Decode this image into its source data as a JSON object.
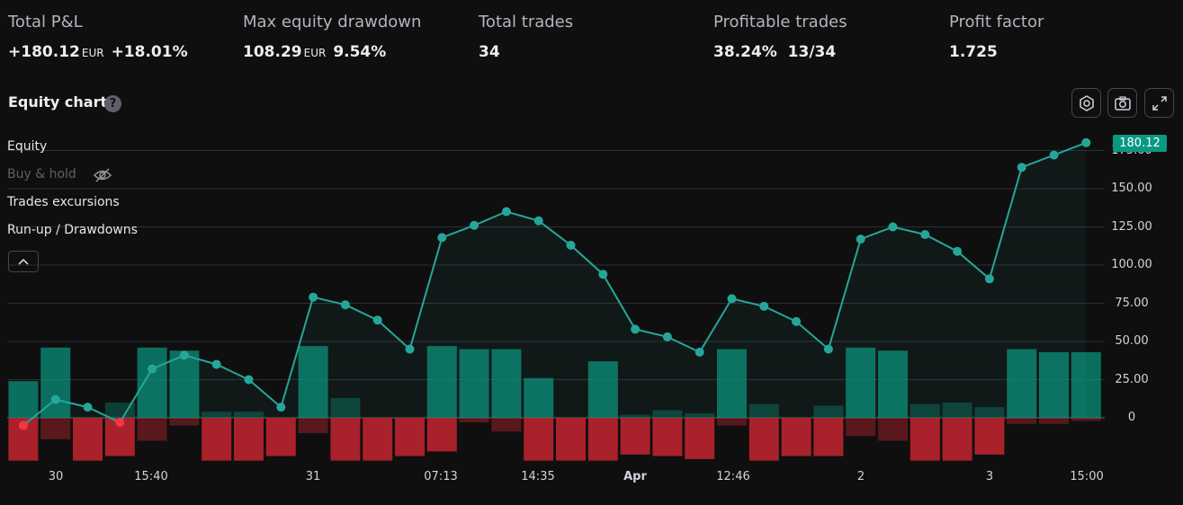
{
  "stats": {
    "pnl": {
      "label": "Total P&L",
      "value": "+180.12",
      "unit": "EUR",
      "pct": "+18.01%"
    },
    "drawdown": {
      "label": "Max equity drawdown",
      "value": "108.29",
      "unit": "EUR",
      "pct": "9.54%"
    },
    "trades": {
      "label": "Total trades",
      "value": "34"
    },
    "profitable": {
      "label": "Profitable trades",
      "pct": "38.24%",
      "ratio": "13/34"
    },
    "factor": {
      "label": "Profit factor",
      "value": "1.725"
    }
  },
  "chart_title": "Equity chart",
  "help_icon": "?",
  "legend": {
    "equity": "Equity",
    "buy_hold": "Buy & hold",
    "excursions": "Trades excursions",
    "runup": "Run-up / Drawdowns"
  },
  "icons": {
    "settings": "settings-icon",
    "camera": "camera-icon",
    "expand": "fullscreen-icon",
    "hidden": "eye-off-icon",
    "collapse": "chevron-up-icon"
  },
  "colors": {
    "profit": "#089981",
    "profit_bright": "#26a69a",
    "loss": "#b2232c",
    "background": "#0f0f0f"
  },
  "last_value_label": "180.12",
  "chart_data": {
    "type": "line",
    "y_ticks": [
      "175.00",
      "150.00",
      "125.00",
      "100.00",
      "75.00",
      "50.00",
      "25.00",
      "0"
    ],
    "x_ticks": [
      "30",
      "15:40",
      "31",
      "07:13",
      "14:35",
      "Apr",
      "12:46",
      "2",
      "3",
      "15:00"
    ],
    "ylim": [
      -28,
      180.12
    ],
    "equity": [
      -5,
      12,
      7,
      -3,
      32,
      41,
      35,
      25,
      7,
      79,
      74,
      64,
      45,
      118,
      126,
      135,
      129,
      113,
      94,
      58,
      53,
      43,
      78,
      73,
      63,
      45,
      117,
      125,
      120,
      109,
      91,
      164,
      172,
      180.12
    ],
    "runup": [
      24,
      46,
      0,
      10,
      46,
      44,
      4,
      4,
      0,
      47,
      13,
      0,
      0,
      47,
      45,
      45,
      26,
      0,
      37,
      2,
      5,
      3,
      45,
      9,
      0,
      8,
      46,
      44,
      9,
      10,
      7,
      45,
      43,
      43
    ],
    "drawdown": [
      28,
      14,
      28,
      25,
      15,
      5,
      28,
      28,
      25,
      10,
      28,
      28,
      25,
      22,
      3,
      9,
      28,
      28,
      28,
      24,
      25,
      27,
      5,
      28,
      25,
      25,
      12,
      15,
      28,
      28,
      24,
      4,
      4,
      2
    ]
  }
}
